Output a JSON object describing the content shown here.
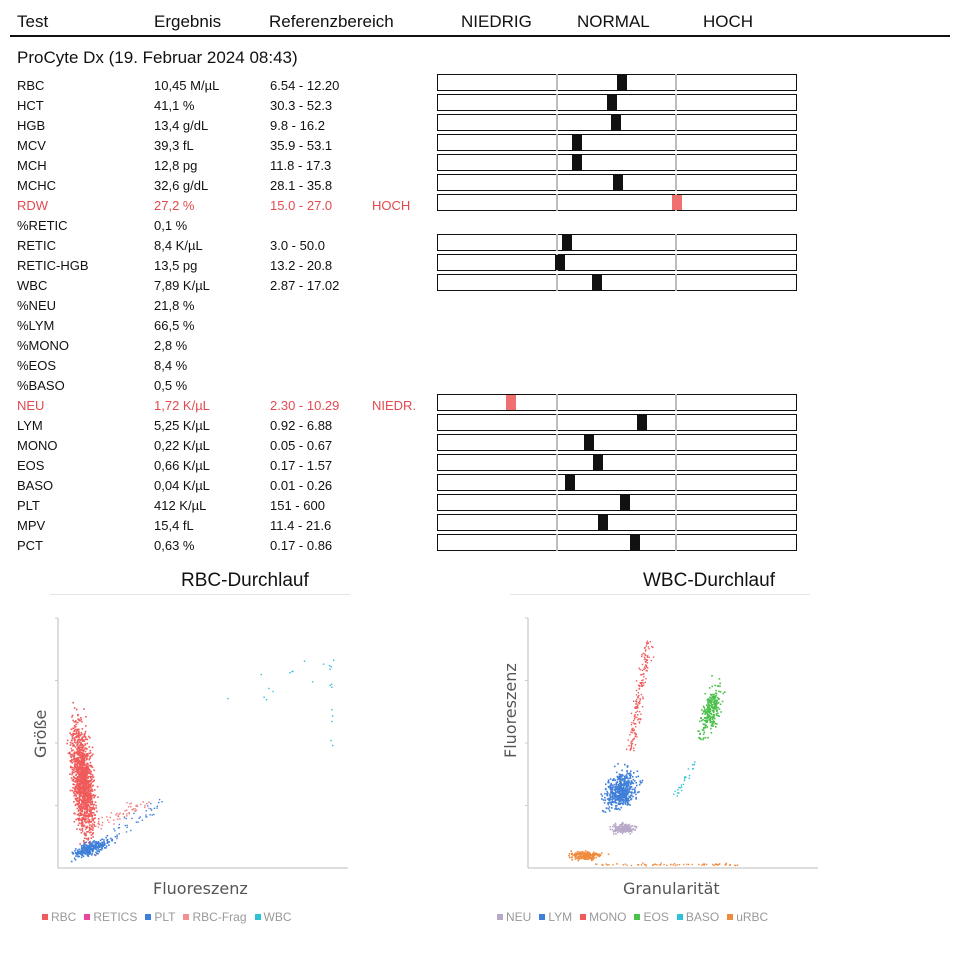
{
  "header": {
    "test": "Test",
    "result": "Ergebnis",
    "reference": "Referenzbereich",
    "low": "NIEDRIG",
    "normal": "NORMAL",
    "high": "HOCH"
  },
  "section_title": "ProCyte Dx (19. Februar 2024 08:43)",
  "rows": [
    {
      "test": "RBC",
      "result": "10,45 M/µL",
      "ref": "6.54 - 12.20",
      "flag": "",
      "level": 0.552
    },
    {
      "test": "HCT",
      "result": "41,1 %",
      "ref": "30.3 - 52.3",
      "flag": "",
      "level": 0.47
    },
    {
      "test": "HGB",
      "result": "13,4 g/dL",
      "ref": "9.8 - 16.2",
      "flag": "",
      "level": 0.507
    },
    {
      "test": "MCV",
      "result": "39,3 fL",
      "ref": "35.9 - 53.1",
      "flag": "",
      "level": 0.178
    },
    {
      "test": "MCH",
      "result": "12,8 pg",
      "ref": "11.8 - 17.3",
      "flag": "",
      "level": 0.178
    },
    {
      "test": "MCHC",
      "result": "32,6 g/dL",
      "ref": "28.1 - 35.8",
      "flag": "",
      "level": 0.518
    },
    {
      "test": "RDW",
      "result": "27,2 %",
      "ref": "15.0 - 27.0",
      "flag": "HOCH",
      "level": 1.02,
      "alert": true
    },
    {
      "test": "%RETIC",
      "result": "0,1 %",
      "ref": "",
      "flag": ""
    },
    {
      "test": "RETIC",
      "result": "8,4 K/µL",
      "ref": "3.0 - 50.0",
      "flag": "",
      "level": 0.093
    },
    {
      "test": "RETIC-HGB",
      "result": "13,5 pg",
      "ref": "13.2 - 20.8",
      "flag": "",
      "level": 0.034
    },
    {
      "test": "WBC",
      "result": "7,89 K/µL",
      "ref": "2.87 - 17.02",
      "flag": "",
      "level": 0.343
    },
    {
      "test": "%NEU",
      "result": "21,8 %",
      "ref": "",
      "flag": ""
    },
    {
      "test": "%LYM",
      "result": "66,5 %",
      "ref": "",
      "flag": ""
    },
    {
      "test": "%MONO",
      "result": "2,8 %",
      "ref": "",
      "flag": ""
    },
    {
      "test": "%EOS",
      "result": "8,4 %",
      "ref": "",
      "flag": ""
    },
    {
      "test": "%BASO",
      "result": "0,5 %",
      "ref": "",
      "flag": ""
    },
    {
      "test": "NEU",
      "result": "1,72 K/µL",
      "ref": "2.30 - 10.29",
      "flag": "NIEDR.",
      "level": -0.38,
      "alert": true
    },
    {
      "test": "LYM",
      "result": "5,25 K/µL",
      "ref": "0.92 - 6.88",
      "flag": "",
      "level": 0.72
    },
    {
      "test": "MONO",
      "result": "0,22 K/µL",
      "ref": "0.05 - 0.67",
      "flag": "",
      "level": 0.275
    },
    {
      "test": "EOS",
      "result": "0,66 K/µL",
      "ref": "0.17 - 1.57",
      "flag": "",
      "level": 0.35
    },
    {
      "test": "BASO",
      "result": "0,04 K/µL",
      "ref": "0.01 - 0.26",
      "flag": "",
      "level": 0.12
    },
    {
      "test": "PLT",
      "result": "412 K/µL",
      "ref": "151 - 600",
      "flag": "",
      "level": 0.582
    },
    {
      "test": "MPV",
      "result": "15,4 fL",
      "ref": "11.4 - 21.6",
      "flag": "",
      "level": 0.392
    },
    {
      "test": "PCT",
      "result": "0,63 %",
      "ref": "0.17 - 0.86",
      "flag": "",
      "level": 0.667
    }
  ],
  "rbc_plot": {
    "title": "RBC-Durchlauf",
    "xlabel": "Fluoreszenz",
    "ylabel": "Größe",
    "legend": [
      {
        "name": "RBC",
        "color": "#f05a5a"
      },
      {
        "name": "RETICS",
        "color": "#e8479a"
      },
      {
        "name": "PLT",
        "color": "#3f7fd8"
      },
      {
        "name": "RBC-Frag",
        "color": "#f09090"
      },
      {
        "name": "WBC",
        "color": "#2fc2d6"
      }
    ]
  },
  "wbc_plot": {
    "title": "WBC-Durchlauf",
    "xlabel": "Granularität",
    "ylabel": "Fluoreszenz",
    "legend": [
      {
        "name": "NEU",
        "color": "#b8a9c9"
      },
      {
        "name": "LYM",
        "color": "#3f7fd8"
      },
      {
        "name": "MONO",
        "color": "#f05a5a"
      },
      {
        "name": "EOS",
        "color": "#4cc04c"
      },
      {
        "name": "BASO",
        "color": "#2fc2d6"
      },
      {
        "name": "uRBC",
        "color": "#f08a3c"
      }
    ]
  }
}
